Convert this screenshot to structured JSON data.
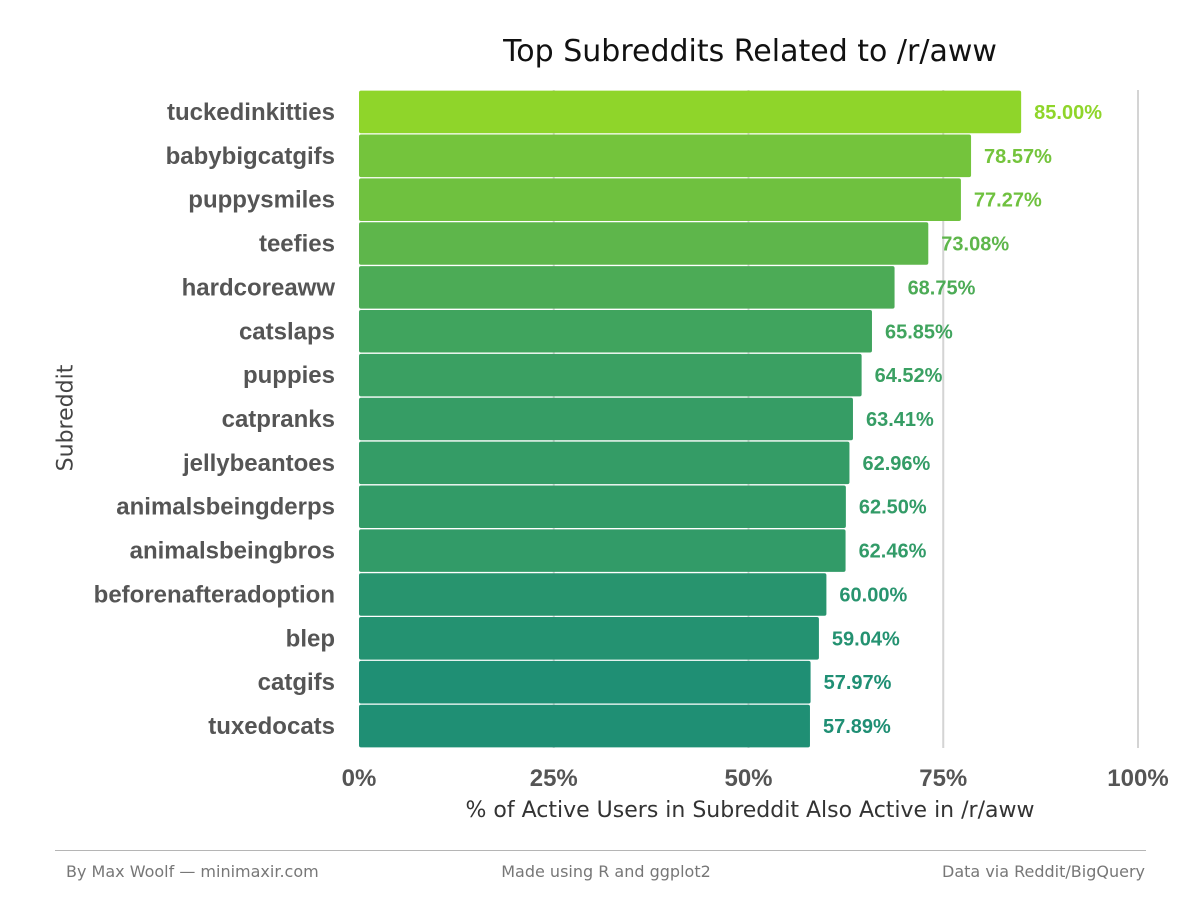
{
  "chart_data": {
    "type": "bar",
    "orientation": "horizontal",
    "title": "Top Subreddits Related to /r/aww",
    "xlabel": "% of Active Users in Subreddit Also Active in /r/aww",
    "ylabel": "Subreddit",
    "categories": [
      "tuckedinkitties",
      "babybigcatgifs",
      "puppysmiles",
      "teefies",
      "hardcoreaww",
      "catslaps",
      "puppies",
      "catpranks",
      "jellybeantoes",
      "animalsbeingderps",
      "animalsbeingbros",
      "beforenafteradoption",
      "blep",
      "catgifs",
      "tuxedocats"
    ],
    "values": [
      85.0,
      78.57,
      77.27,
      73.08,
      68.75,
      65.85,
      64.52,
      63.41,
      62.96,
      62.5,
      62.46,
      60.0,
      59.04,
      57.97,
      57.89
    ],
    "data_labels": [
      "85.00%",
      "78.57%",
      "77.27%",
      "73.08%",
      "68.75%",
      "65.85%",
      "64.52%",
      "63.41%",
      "62.96%",
      "62.50%",
      "62.46%",
      "60.00%",
      "59.04%",
      "57.97%",
      "57.89%"
    ],
    "xlim": [
      0,
      100
    ],
    "xticks": [
      0,
      25,
      50,
      75,
      100
    ],
    "xtick_labels": [
      "0%",
      "25%",
      "50%",
      "75%",
      "100%"
    ],
    "grid": "vertical major lines",
    "color_scale": {
      "low": "#1f8f74",
      "high": "#8fd52a"
    }
  },
  "footer": {
    "left": "By Max Woolf — minimaxir.com",
    "center": "Made using R and ggplot2",
    "right": "Data via Reddit/BigQuery"
  }
}
